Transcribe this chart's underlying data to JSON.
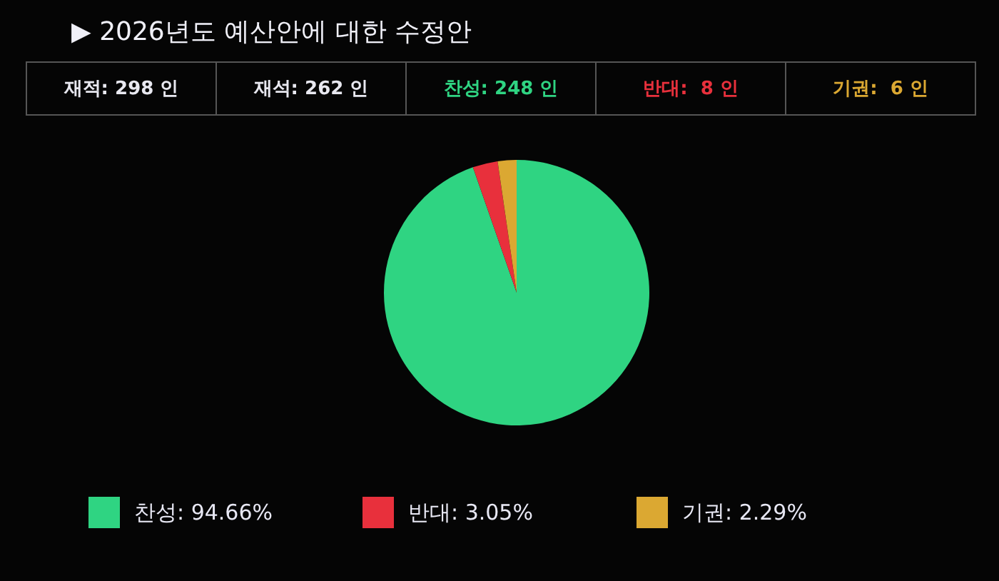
{
  "chart_data": {
    "type": "pie",
    "title": "▶ 2026년도 예산안에 대한 수정안",
    "annotations": [
      "재적: 298 인",
      "재석: 262 인",
      "찬성: 248 인",
      "반대:  8 인",
      "기권:  6 인"
    ],
    "categories": [
      "찬성: 94.66%",
      "반대: 3.05%",
      "기권: 2.29%"
    ],
    "values": [
      94.66,
      3.05,
      2.29
    ],
    "colors": [
      "#2fd482",
      "#e8303c",
      "#dba832"
    ],
    "legend": "bottom"
  }
}
